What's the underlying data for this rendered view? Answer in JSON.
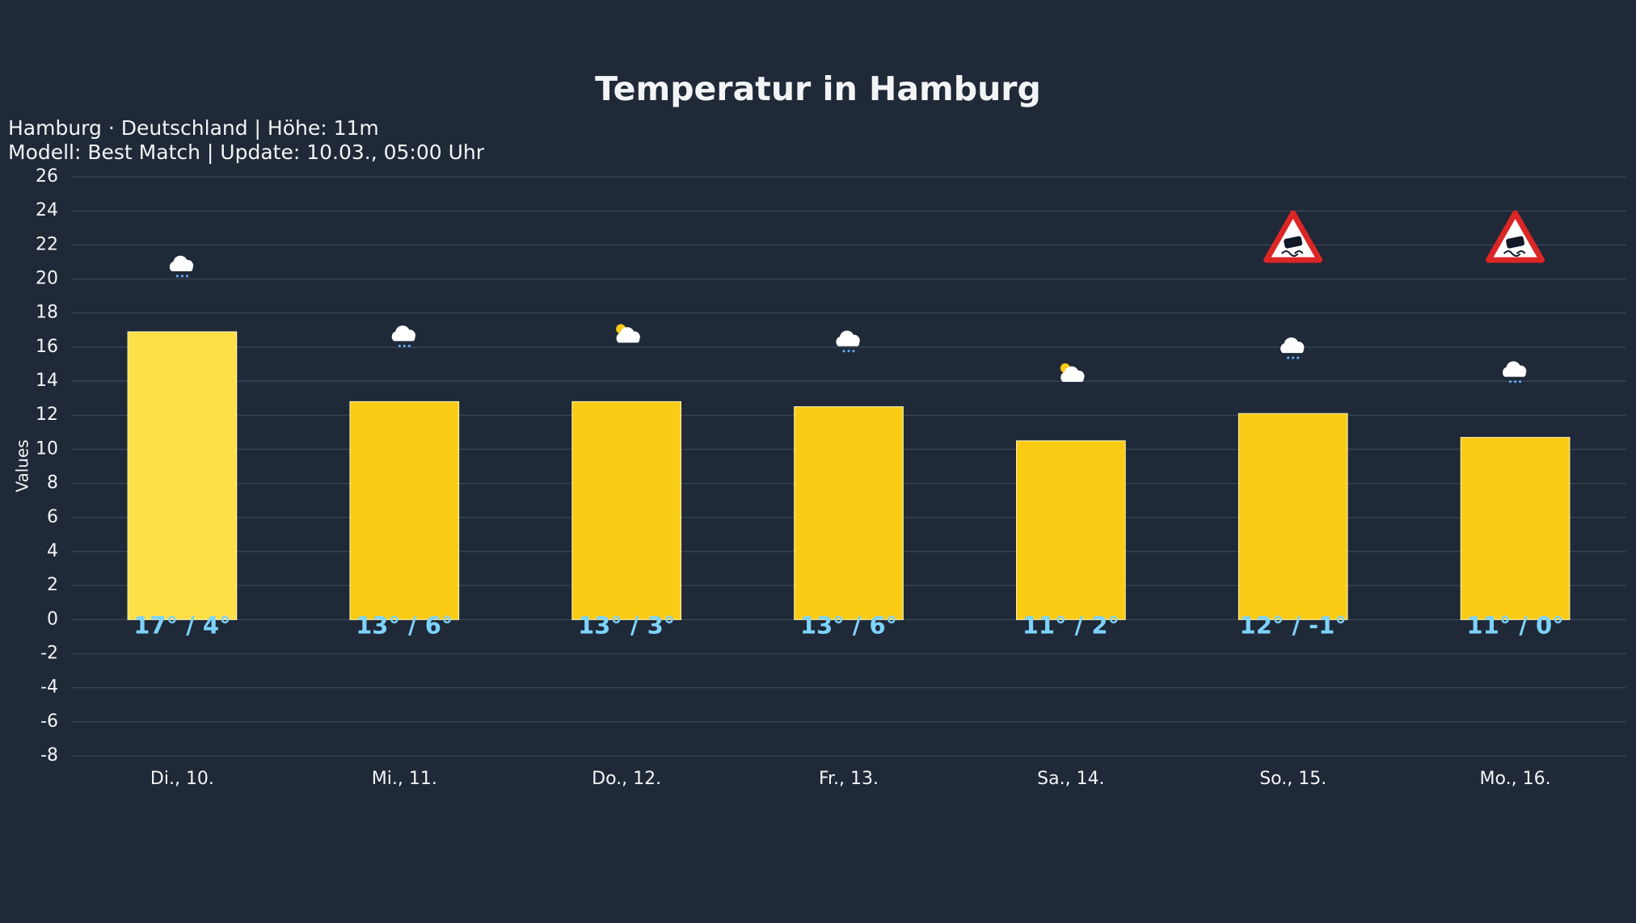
{
  "chart_data": {
    "type": "bar",
    "title": "Temperatur in Hamburg",
    "subtitle": [
      "Hamburg · Deutschland | Höhe: 11m",
      "Modell: Best Match | Update: 10.03., 05:00 Uhr"
    ],
    "y_label": "Values",
    "categories": [
      "Di., 10.",
      "Mi., 11.",
      "Do., 12.",
      "Fr., 13.",
      "Sa., 14.",
      "So., 15.",
      "Mo., 16."
    ],
    "values": [
      16.9,
      12.8,
      12.8,
      12.5,
      10.5,
      12.1,
      10.7
    ],
    "value_labels": [
      "17° / 4°",
      "13° / 6°",
      "13° / 3°",
      "13° / 6°",
      "11° / 2°",
      "12° / -1°",
      "11° / 0°"
    ],
    "colors": [
      "#fde047",
      "#facc15",
      "#facc15",
      "#facc15",
      "#facc15",
      "#facc15",
      "#facc15"
    ],
    "ylim": [
      -8,
      26
    ],
    "yticks": [
      -8,
      -6,
      -4,
      -2,
      0,
      2,
      4,
      6,
      8,
      10,
      12,
      14,
      16,
      18,
      20,
      22,
      24,
      26
    ],
    "grid": true
  }
}
